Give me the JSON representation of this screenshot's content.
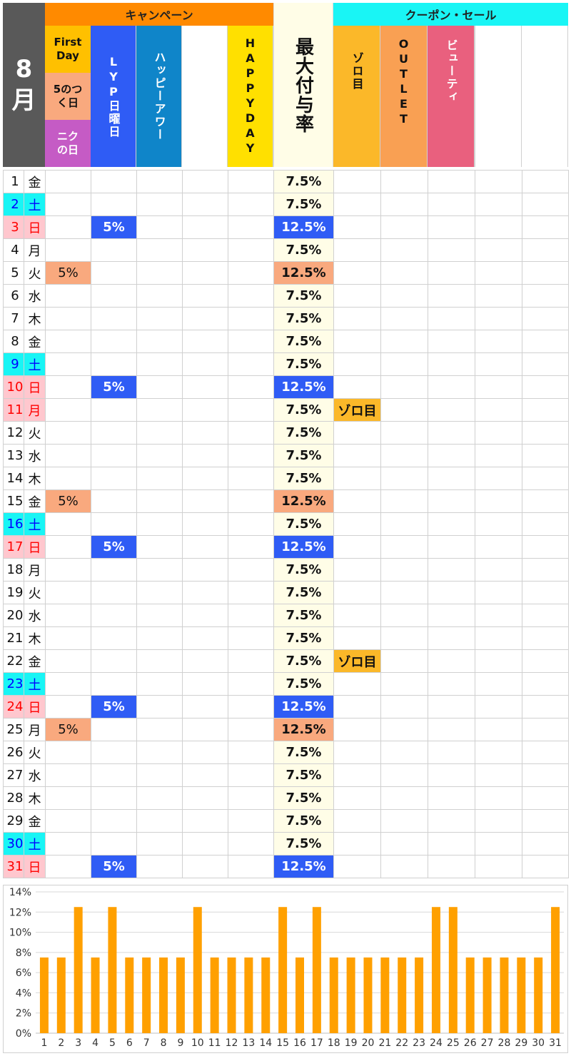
{
  "header": {
    "month_number": "8",
    "month_kanji": "月",
    "campaign_label": "キャンペーン",
    "coupon_label": "クーポン・セール",
    "max_label": "最大付与率",
    "first_day_label": "First Day",
    "five_day_label": "5のつく日",
    "niku_day_label": "ニクの日",
    "lyp_sunday_label": "LYP日曜日",
    "happy_hour_label": "ハッピーアワー",
    "happy_day_label": "HAPPYDAY",
    "zoro_label": "ゾロ目",
    "outlet_label": "OUTLET",
    "beauty_label": "ビューティ"
  },
  "colors": {
    "saturday_bg": "#19f5f5",
    "saturday_text": "#0000ff",
    "sunday_bg": "#ffc7ce",
    "sunday_text": "#ff0000",
    "five_bg": "#f9a97e",
    "lyp_bg": "#2f5cf5",
    "zoro_bg": "#fbb829",
    "bar": "#ffa000"
  },
  "days": [
    {
      "d": "1",
      "w": "金",
      "t": "",
      "five": "",
      "lyp": "",
      "max": "7.5%",
      "zoro": ""
    },
    {
      "d": "2",
      "w": "土",
      "t": "sat",
      "five": "",
      "lyp": "",
      "max": "7.5%",
      "zoro": ""
    },
    {
      "d": "3",
      "w": "日",
      "t": "sun",
      "five": "",
      "lyp": "5%",
      "max": "12.5%",
      "zoro": ""
    },
    {
      "d": "4",
      "w": "月",
      "t": "",
      "five": "",
      "lyp": "",
      "max": "7.5%",
      "zoro": ""
    },
    {
      "d": "5",
      "w": "火",
      "t": "",
      "five": "5%",
      "lyp": "",
      "max": "12.5%",
      "zoro": ""
    },
    {
      "d": "6",
      "w": "水",
      "t": "",
      "five": "",
      "lyp": "",
      "max": "7.5%",
      "zoro": ""
    },
    {
      "d": "7",
      "w": "木",
      "t": "",
      "five": "",
      "lyp": "",
      "max": "7.5%",
      "zoro": ""
    },
    {
      "d": "8",
      "w": "金",
      "t": "",
      "five": "",
      "lyp": "",
      "max": "7.5%",
      "zoro": ""
    },
    {
      "d": "9",
      "w": "土",
      "t": "sat",
      "five": "",
      "lyp": "",
      "max": "7.5%",
      "zoro": ""
    },
    {
      "d": "10",
      "w": "日",
      "t": "sun",
      "five": "",
      "lyp": "5%",
      "max": "12.5%",
      "zoro": ""
    },
    {
      "d": "11",
      "w": "月",
      "t": "hol",
      "five": "",
      "lyp": "",
      "max": "7.5%",
      "zoro": "ゾロ目"
    },
    {
      "d": "12",
      "w": "火",
      "t": "",
      "five": "",
      "lyp": "",
      "max": "7.5%",
      "zoro": ""
    },
    {
      "d": "13",
      "w": "水",
      "t": "",
      "five": "",
      "lyp": "",
      "max": "7.5%",
      "zoro": ""
    },
    {
      "d": "14",
      "w": "木",
      "t": "",
      "five": "",
      "lyp": "",
      "max": "7.5%",
      "zoro": ""
    },
    {
      "d": "15",
      "w": "金",
      "t": "",
      "five": "5%",
      "lyp": "",
      "max": "12.5%",
      "zoro": ""
    },
    {
      "d": "16",
      "w": "土",
      "t": "sat",
      "five": "",
      "lyp": "",
      "max": "7.5%",
      "zoro": ""
    },
    {
      "d": "17",
      "w": "日",
      "t": "sun",
      "five": "",
      "lyp": "5%",
      "max": "12.5%",
      "zoro": ""
    },
    {
      "d": "18",
      "w": "月",
      "t": "",
      "five": "",
      "lyp": "",
      "max": "7.5%",
      "zoro": ""
    },
    {
      "d": "19",
      "w": "火",
      "t": "",
      "five": "",
      "lyp": "",
      "max": "7.5%",
      "zoro": ""
    },
    {
      "d": "20",
      "w": "水",
      "t": "",
      "five": "",
      "lyp": "",
      "max": "7.5%",
      "zoro": ""
    },
    {
      "d": "21",
      "w": "木",
      "t": "",
      "five": "",
      "lyp": "",
      "max": "7.5%",
      "zoro": ""
    },
    {
      "d": "22",
      "w": "金",
      "t": "",
      "five": "",
      "lyp": "",
      "max": "7.5%",
      "zoro": "ゾロ目"
    },
    {
      "d": "23",
      "w": "土",
      "t": "sat",
      "five": "",
      "lyp": "",
      "max": "7.5%",
      "zoro": ""
    },
    {
      "d": "24",
      "w": "日",
      "t": "sun",
      "five": "",
      "lyp": "5%",
      "max": "12.5%",
      "zoro": ""
    },
    {
      "d": "25",
      "w": "月",
      "t": "",
      "five": "5%",
      "lyp": "",
      "max": "12.5%",
      "zoro": ""
    },
    {
      "d": "26",
      "w": "火",
      "t": "",
      "five": "",
      "lyp": "",
      "max": "7.5%",
      "zoro": ""
    },
    {
      "d": "27",
      "w": "水",
      "t": "",
      "five": "",
      "lyp": "",
      "max": "7.5%",
      "zoro": ""
    },
    {
      "d": "28",
      "w": "木",
      "t": "",
      "five": "",
      "lyp": "",
      "max": "7.5%",
      "zoro": ""
    },
    {
      "d": "29",
      "w": "金",
      "t": "",
      "five": "",
      "lyp": "",
      "max": "7.5%",
      "zoro": ""
    },
    {
      "d": "30",
      "w": "土",
      "t": "sat",
      "five": "",
      "lyp": "",
      "max": "7.5%",
      "zoro": ""
    },
    {
      "d": "31",
      "w": "日",
      "t": "sun",
      "five": "",
      "lyp": "5%",
      "max": "12.5%",
      "zoro": ""
    }
  ],
  "chart_data": {
    "type": "bar",
    "title": "",
    "xlabel": "",
    "ylabel": "",
    "categories": [
      "1",
      "2",
      "3",
      "4",
      "5",
      "6",
      "7",
      "8",
      "9",
      "10",
      "11",
      "12",
      "13",
      "14",
      "15",
      "16",
      "17",
      "18",
      "19",
      "20",
      "21",
      "22",
      "23",
      "24",
      "25",
      "26",
      "27",
      "28",
      "29",
      "30",
      "31"
    ],
    "values": [
      7.5,
      7.5,
      12.5,
      7.5,
      12.5,
      7.5,
      7.5,
      7.5,
      7.5,
      12.5,
      7.5,
      7.5,
      7.5,
      7.5,
      12.5,
      7.5,
      12.5,
      7.5,
      7.5,
      7.5,
      7.5,
      7.5,
      7.5,
      12.5,
      12.5,
      7.5,
      7.5,
      7.5,
      7.5,
      7.5,
      12.5
    ],
    "ylim": [
      0,
      14
    ],
    "yticks": [
      "0%",
      "2%",
      "4%",
      "6%",
      "8%",
      "10%",
      "12%",
      "14%"
    ],
    "grid": true,
    "legend": "none"
  }
}
